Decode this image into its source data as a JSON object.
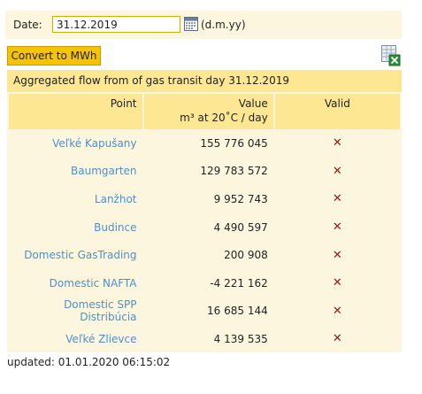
{
  "date_row": {
    "label": "Date:",
    "date_value": "31.12.2019",
    "format_hint": "(d.m.yy)",
    "calendar_icon": "calendar-icon"
  },
  "toolbar": {
    "convert_label": "Convert to MWh",
    "export_icon": "excel-export-icon"
  },
  "table": {
    "caption": "Aggregated flow from of gas transit day 31.12.2019",
    "headers": {
      "point": "Point",
      "value": "Value",
      "value_unit": "m³ at 20˚C / day",
      "valid": "Valid"
    },
    "rows": [
      {
        "point": "Veľké Kapušany",
        "value": "155 776 045",
        "valid": "✕"
      },
      {
        "point": "Baumgarten",
        "value": "129 783 572",
        "valid": "✕"
      },
      {
        "point": "Lanžhot",
        "value": "9 952 743",
        "valid": "✕"
      },
      {
        "point": "Budince",
        "value": "4 490 597",
        "valid": "✕"
      },
      {
        "point": "Domestic GasTrading",
        "value": "200 908",
        "valid": "✕"
      },
      {
        "point": "Domestic NAFTA",
        "value": "-4 221 162",
        "valid": "✕"
      },
      {
        "point": "Domestic SPP Distribúcia",
        "value": "16 685 144",
        "valid": "✕"
      },
      {
        "point": "Veľké Zlievce",
        "value": "4 139 535",
        "valid": "✕"
      }
    ]
  },
  "footer": {
    "updated": "updated: 01.01.2020 06:15:02"
  },
  "colors": {
    "accent_button": "#f5c400",
    "header_bg": "#fde793",
    "panel_bg": "#fdf6df",
    "link": "#4e8fc9",
    "invalid_mark": "#8b1a1a"
  }
}
